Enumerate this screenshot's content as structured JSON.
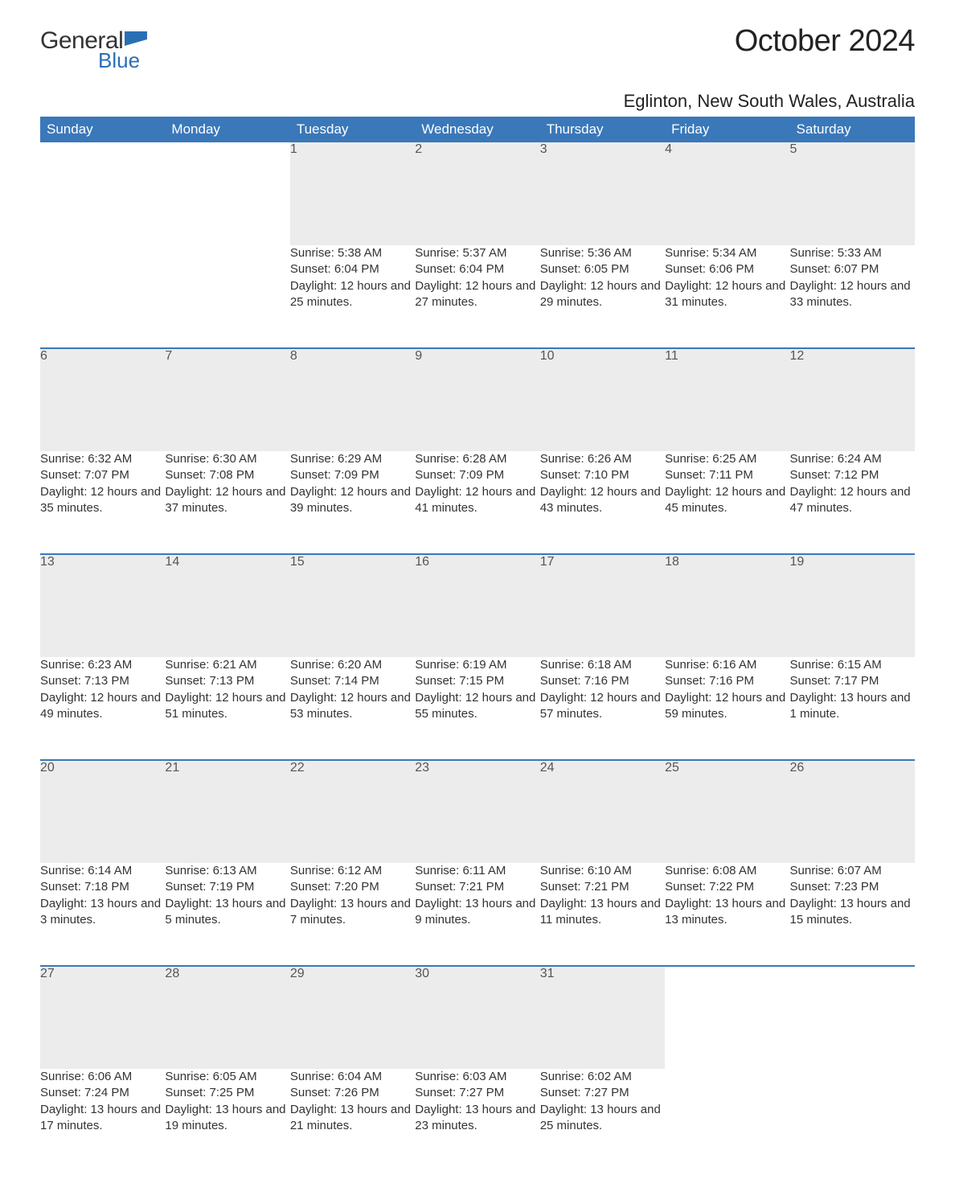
{
  "logo": {
    "word1": "General",
    "word2": "Blue",
    "flag_color": "#2a6fb5"
  },
  "title": "October 2024",
  "location": "Eglinton, New South Wales, Australia",
  "colors": {
    "header_bg": "#3a78b9",
    "header_text": "#ffffff",
    "daynum_bg": "#ececec",
    "row_divider": "#3a78b9",
    "body_text": "#333333",
    "page_bg": "#ffffff"
  },
  "weekdays": [
    "Sunday",
    "Monday",
    "Tuesday",
    "Wednesday",
    "Thursday",
    "Friday",
    "Saturday"
  ],
  "labels": {
    "sunrise": "Sunrise: ",
    "sunset": "Sunset: ",
    "daylight": "Daylight: "
  },
  "weeks": [
    [
      null,
      null,
      {
        "n": "1",
        "sunrise": "5:38 AM",
        "sunset": "6:04 PM",
        "daylight": "12 hours and 25 minutes."
      },
      {
        "n": "2",
        "sunrise": "5:37 AM",
        "sunset": "6:04 PM",
        "daylight": "12 hours and 27 minutes."
      },
      {
        "n": "3",
        "sunrise": "5:36 AM",
        "sunset": "6:05 PM",
        "daylight": "12 hours and 29 minutes."
      },
      {
        "n": "4",
        "sunrise": "5:34 AM",
        "sunset": "6:06 PM",
        "daylight": "12 hours and 31 minutes."
      },
      {
        "n": "5",
        "sunrise": "5:33 AM",
        "sunset": "6:07 PM",
        "daylight": "12 hours and 33 minutes."
      }
    ],
    [
      {
        "n": "6",
        "sunrise": "6:32 AM",
        "sunset": "7:07 PM",
        "daylight": "12 hours and 35 minutes."
      },
      {
        "n": "7",
        "sunrise": "6:30 AM",
        "sunset": "7:08 PM",
        "daylight": "12 hours and 37 minutes."
      },
      {
        "n": "8",
        "sunrise": "6:29 AM",
        "sunset": "7:09 PM",
        "daylight": "12 hours and 39 minutes."
      },
      {
        "n": "9",
        "sunrise": "6:28 AM",
        "sunset": "7:09 PM",
        "daylight": "12 hours and 41 minutes."
      },
      {
        "n": "10",
        "sunrise": "6:26 AM",
        "sunset": "7:10 PM",
        "daylight": "12 hours and 43 minutes."
      },
      {
        "n": "11",
        "sunrise": "6:25 AM",
        "sunset": "7:11 PM",
        "daylight": "12 hours and 45 minutes."
      },
      {
        "n": "12",
        "sunrise": "6:24 AM",
        "sunset": "7:12 PM",
        "daylight": "12 hours and 47 minutes."
      }
    ],
    [
      {
        "n": "13",
        "sunrise": "6:23 AM",
        "sunset": "7:13 PM",
        "daylight": "12 hours and 49 minutes."
      },
      {
        "n": "14",
        "sunrise": "6:21 AM",
        "sunset": "7:13 PM",
        "daylight": "12 hours and 51 minutes."
      },
      {
        "n": "15",
        "sunrise": "6:20 AM",
        "sunset": "7:14 PM",
        "daylight": "12 hours and 53 minutes."
      },
      {
        "n": "16",
        "sunrise": "6:19 AM",
        "sunset": "7:15 PM",
        "daylight": "12 hours and 55 minutes."
      },
      {
        "n": "17",
        "sunrise": "6:18 AM",
        "sunset": "7:16 PM",
        "daylight": "12 hours and 57 minutes."
      },
      {
        "n": "18",
        "sunrise": "6:16 AM",
        "sunset": "7:16 PM",
        "daylight": "12 hours and 59 minutes."
      },
      {
        "n": "19",
        "sunrise": "6:15 AM",
        "sunset": "7:17 PM",
        "daylight": "13 hours and 1 minute."
      }
    ],
    [
      {
        "n": "20",
        "sunrise": "6:14 AM",
        "sunset": "7:18 PM",
        "daylight": "13 hours and 3 minutes."
      },
      {
        "n": "21",
        "sunrise": "6:13 AM",
        "sunset": "7:19 PM",
        "daylight": "13 hours and 5 minutes."
      },
      {
        "n": "22",
        "sunrise": "6:12 AM",
        "sunset": "7:20 PM",
        "daylight": "13 hours and 7 minutes."
      },
      {
        "n": "23",
        "sunrise": "6:11 AM",
        "sunset": "7:21 PM",
        "daylight": "13 hours and 9 minutes."
      },
      {
        "n": "24",
        "sunrise": "6:10 AM",
        "sunset": "7:21 PM",
        "daylight": "13 hours and 11 minutes."
      },
      {
        "n": "25",
        "sunrise": "6:08 AM",
        "sunset": "7:22 PM",
        "daylight": "13 hours and 13 minutes."
      },
      {
        "n": "26",
        "sunrise": "6:07 AM",
        "sunset": "7:23 PM",
        "daylight": "13 hours and 15 minutes."
      }
    ],
    [
      {
        "n": "27",
        "sunrise": "6:06 AM",
        "sunset": "7:24 PM",
        "daylight": "13 hours and 17 minutes."
      },
      {
        "n": "28",
        "sunrise": "6:05 AM",
        "sunset": "7:25 PM",
        "daylight": "13 hours and 19 minutes."
      },
      {
        "n": "29",
        "sunrise": "6:04 AM",
        "sunset": "7:26 PM",
        "daylight": "13 hours and 21 minutes."
      },
      {
        "n": "30",
        "sunrise": "6:03 AM",
        "sunset": "7:27 PM",
        "daylight": "13 hours and 23 minutes."
      },
      {
        "n": "31",
        "sunrise": "6:02 AM",
        "sunset": "7:27 PM",
        "daylight": "13 hours and 25 minutes."
      },
      null,
      null
    ]
  ]
}
